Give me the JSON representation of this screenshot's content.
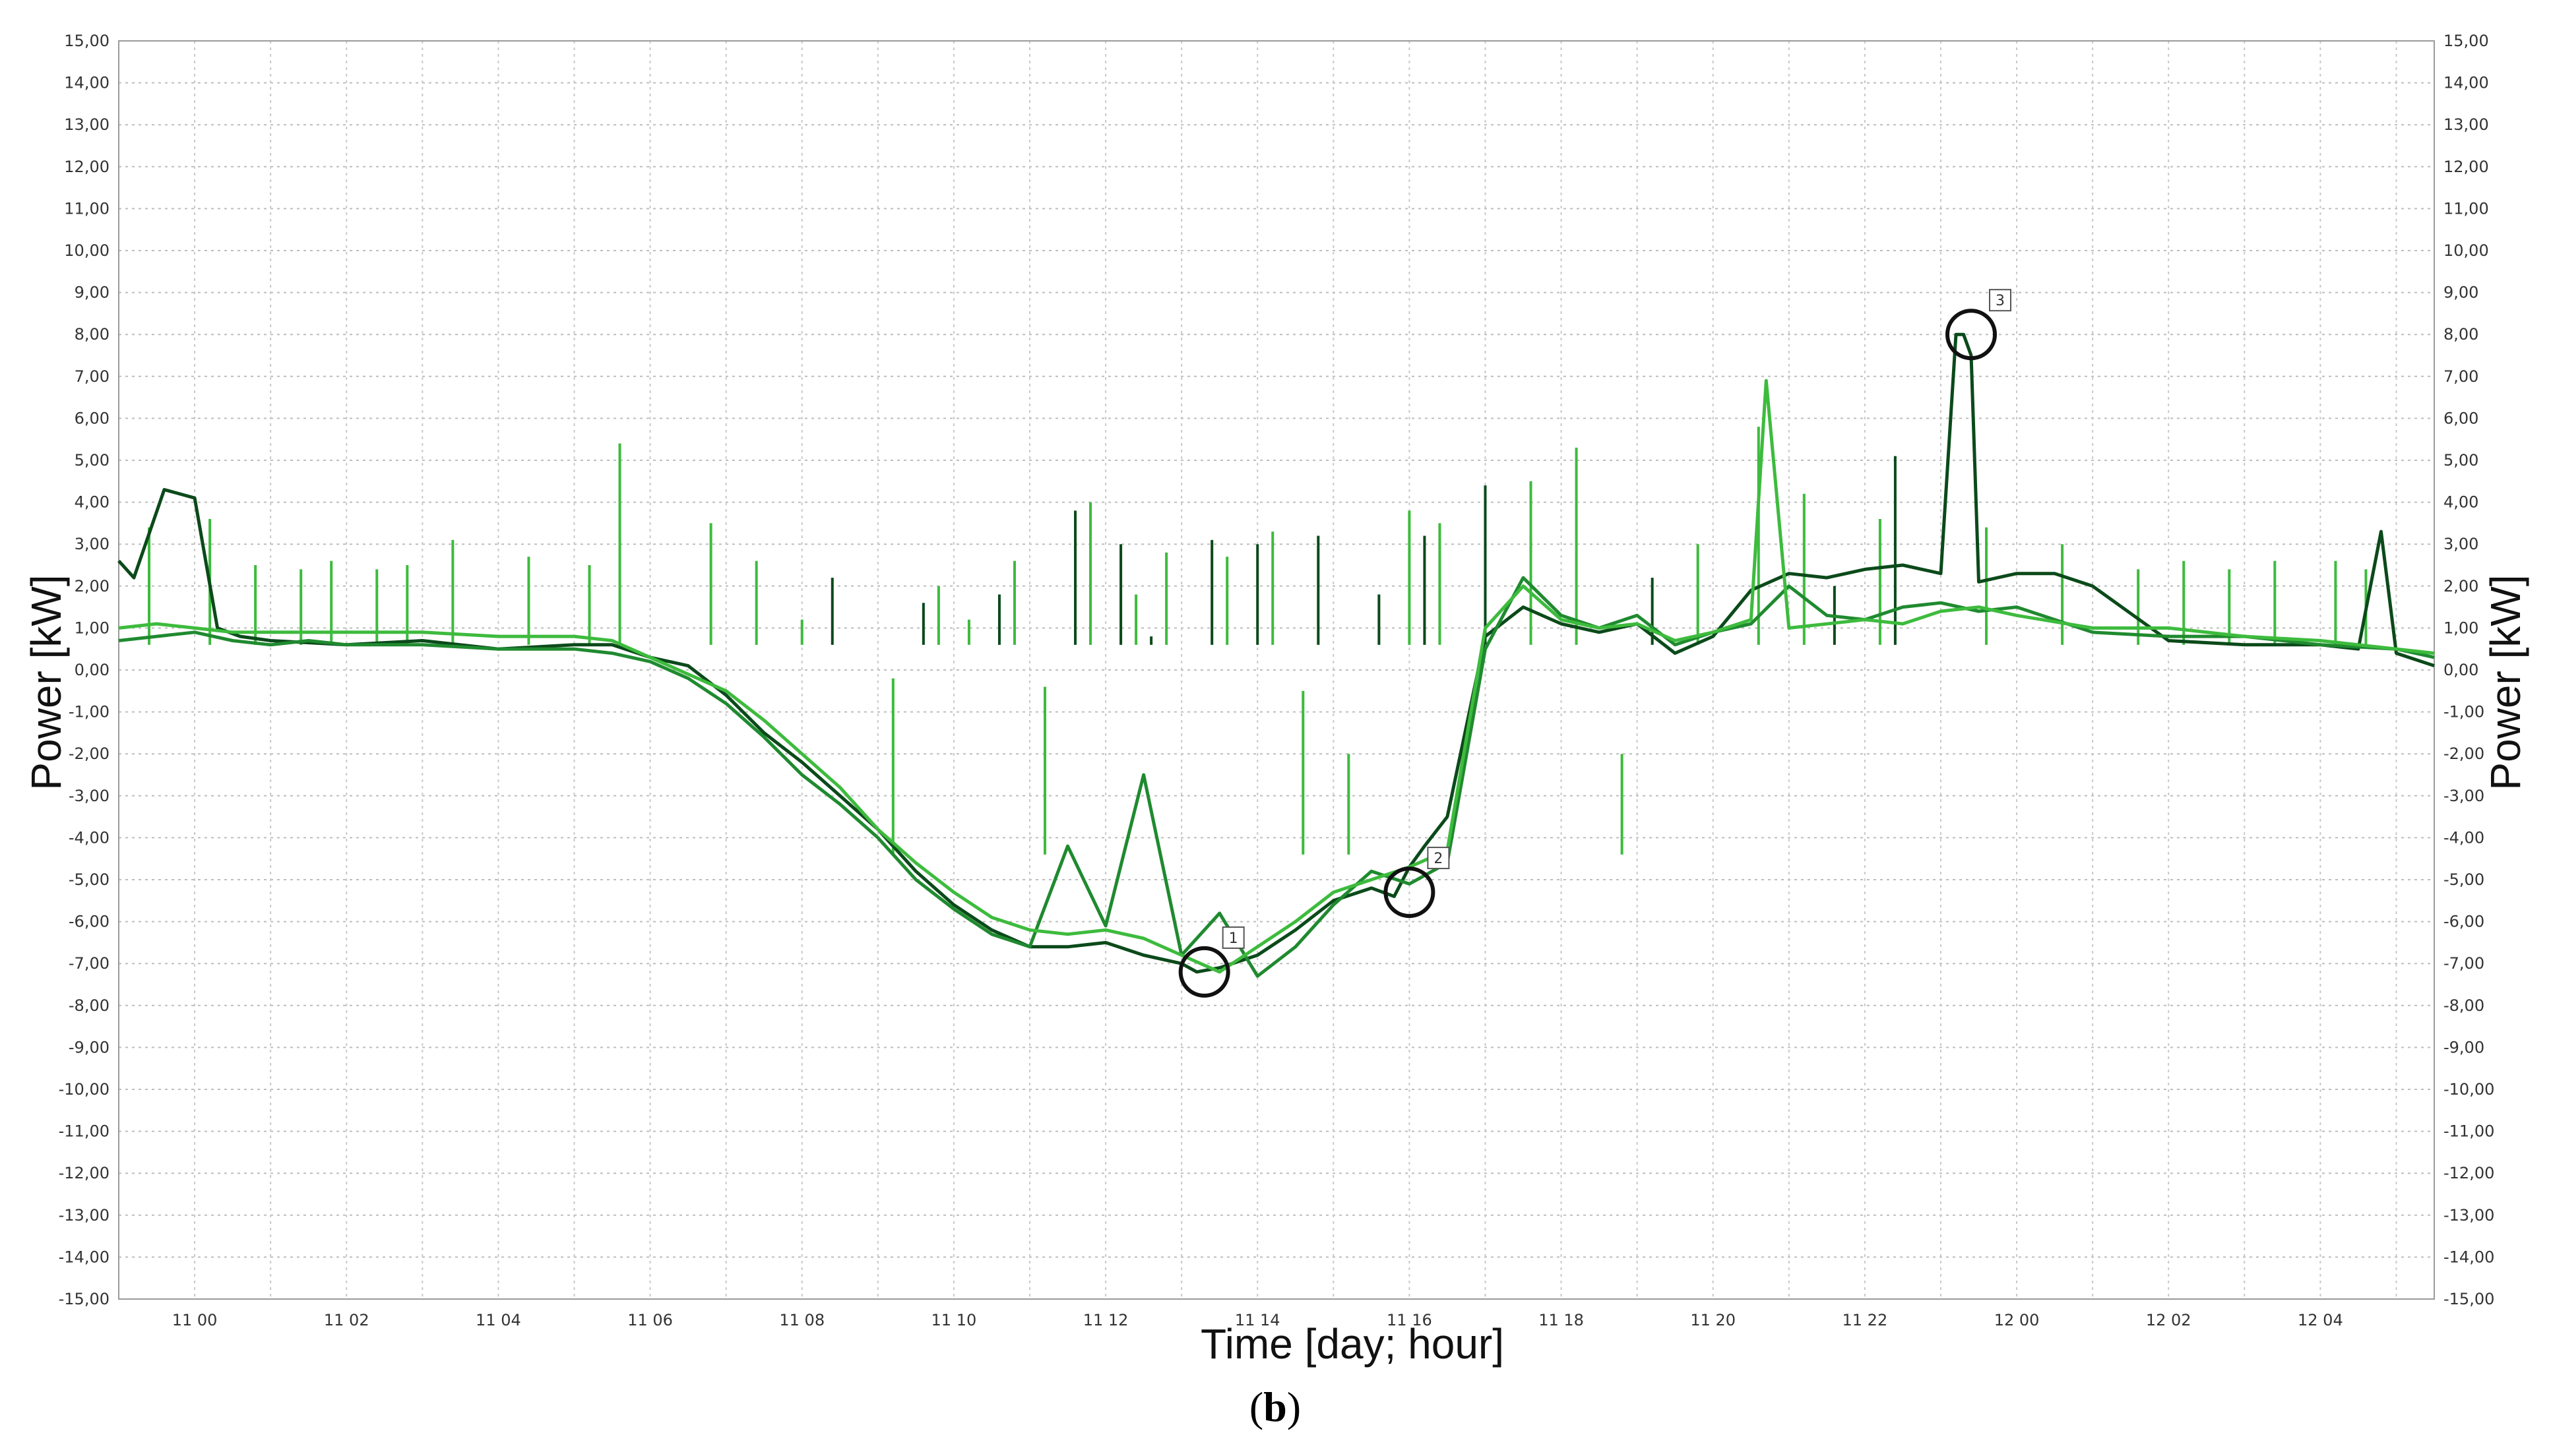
{
  "chart_data": {
    "type": "line",
    "title": "",
    "panel_label_letter": "b",
    "xlabel": "Time [day; hour]",
    "ylabel_left": "Power [kW]",
    "ylabel_right": "Power [kW]",
    "x_unit": "hours from 11 00",
    "xlim": [
      -1,
      29.5
    ],
    "ylim": [
      -15,
      15
    ],
    "y_ticks": [
      15,
      14,
      13,
      12,
      11,
      10,
      9,
      8,
      7,
      6,
      5,
      4,
      3,
      2,
      1,
      0,
      -1,
      -2,
      -3,
      -4,
      -5,
      -6,
      -7,
      -8,
      -9,
      -10,
      -11,
      -12,
      -13,
      -14,
      -15
    ],
    "y_tick_labels": [
      "15,00",
      "14,00",
      "13,00",
      "12,00",
      "11,00",
      "10,00",
      "9,00",
      "8,00",
      "7,00",
      "6,00",
      "5,00",
      "4,00",
      "3,00",
      "2,00",
      "1,00",
      "0,00",
      "-1,00",
      "-2,00",
      "-3,00",
      "-4,00",
      "-5,00",
      "-6,00",
      "-7,00",
      "-8,00",
      "-9,00",
      "-10,00",
      "-11,00",
      "-12,00",
      "-13,00",
      "-14,00",
      "-15,00"
    ],
    "x_ticks": [
      0,
      2,
      4,
      6,
      8,
      10,
      12,
      14,
      16,
      18,
      20,
      22,
      24,
      26,
      28
    ],
    "x_tick_labels": [
      "11 00",
      "11 02",
      "11 04",
      "11 06",
      "11 08",
      "11 10",
      "11 12",
      "11 14",
      "11 16",
      "11 18",
      "11 20",
      "11 22",
      "12 00",
      "12 02",
      "12 04"
    ],
    "grid": true,
    "series": [
      {
        "color": "#0b4a1a",
        "x": [
          -1,
          -0.8,
          -0.4,
          -0.2,
          0,
          0.3,
          0.6,
          1,
          2,
          3,
          4,
          5,
          5.5,
          6,
          6.5,
          7,
          7.5,
          8,
          8.5,
          9,
          9.5,
          10,
          10.5,
          11,
          11.5,
          12,
          12.5,
          13,
          13.2,
          13.5,
          14,
          14.5,
          15,
          15.5,
          15.8,
          16,
          16.2,
          16.5,
          17,
          17.5,
          18,
          18.5,
          19,
          19.5,
          20,
          20.5,
          21,
          21.5,
          22,
          22.5,
          23,
          23.2,
          23.3,
          23.4,
          23.5,
          24,
          24.5,
          25,
          26,
          27,
          28,
          28.5,
          28.8,
          29,
          29.5
        ],
        "y": [
          2.6,
          2.2,
          4.3,
          4.2,
          4.1,
          1,
          0.8,
          0.7,
          0.6,
          0.7,
          0.5,
          0.6,
          0.6,
          0.3,
          0.1,
          -0.6,
          -1.5,
          -2.2,
          -3,
          -3.8,
          -4.8,
          -5.6,
          -6.2,
          -6.6,
          -6.6,
          -6.5,
          -6.8,
          -7,
          -7.2,
          -7.1,
          -6.8,
          -6.2,
          -5.5,
          -5.2,
          -5.4,
          -4.7,
          -4.2,
          -3.5,
          0.8,
          1.5,
          1.1,
          0.9,
          1.1,
          0.4,
          0.8,
          1.9,
          2.3,
          2.2,
          2.4,
          2.5,
          2.3,
          8,
          8,
          7.5,
          2.1,
          2.3,
          2.3,
          2.0,
          0.7,
          0.6,
          0.6,
          0.5,
          3.3,
          0.4,
          0.1
        ]
      },
      {
        "color": "#1f8a2f",
        "x": [
          -1,
          -0.5,
          0,
          0.5,
          1,
          1.5,
          2,
          3,
          4,
          5,
          5.5,
          6,
          6.5,
          7,
          7.5,
          8,
          8.5,
          9,
          9.5,
          10,
          10.5,
          11,
          11.5,
          12,
          12.5,
          13,
          13.5,
          14,
          14.5,
          15,
          15.5,
          16,
          16.5,
          17,
          17.5,
          18,
          18.5,
          19,
          19.5,
          20,
          20.5,
          21,
          21.5,
          22,
          22.5,
          23,
          23.5,
          24,
          25,
          26,
          27,
          28,
          29,
          29.5
        ],
        "y": [
          0.7,
          0.8,
          0.9,
          0.7,
          0.6,
          0.7,
          0.6,
          0.6,
          0.5,
          0.5,
          0.4,
          0.2,
          -0.2,
          -0.8,
          -1.6,
          -2.5,
          -3.2,
          -4,
          -5,
          -5.7,
          -6.3,
          -6.6,
          -4.2,
          -6.1,
          -2.5,
          -6.8,
          -5.8,
          -7.3,
          -6.6,
          -5.6,
          -4.8,
          -5.1,
          -4.6,
          0.5,
          2.2,
          1.3,
          1.0,
          1.3,
          0.6,
          0.9,
          1.1,
          2.0,
          1.3,
          1.2,
          1.5,
          1.6,
          1.4,
          1.5,
          0.9,
          0.8,
          0.8,
          0.6,
          0.5,
          0.3
        ]
      },
      {
        "color": "#3dbb3d",
        "x": [
          -1,
          -0.5,
          0,
          0.5,
          1,
          2,
          3,
          4,
          5,
          5.5,
          6,
          6.5,
          7,
          7.5,
          8,
          8.5,
          9,
          9.5,
          10,
          10.5,
          11,
          11.5,
          12,
          12.5,
          13,
          13.5,
          14,
          14.5,
          15,
          15.5,
          16,
          16.5,
          17,
          17.5,
          18,
          18.5,
          19,
          19.5,
          20,
          20.5,
          20.7,
          21,
          22,
          22.5,
          23,
          23.5,
          24,
          25,
          26,
          27,
          28,
          29,
          29.5
        ],
        "y": [
          1.0,
          1.1,
          1.0,
          0.9,
          0.9,
          0.9,
          0.9,
          0.8,
          0.8,
          0.7,
          0.3,
          -0.1,
          -0.5,
          -1.2,
          -2,
          -2.8,
          -3.8,
          -4.6,
          -5.3,
          -5.9,
          -6.2,
          -6.3,
          -6.2,
          -6.4,
          -6.8,
          -7.2,
          -6.6,
          -6.0,
          -5.3,
          -5.0,
          -4.7,
          -4.3,
          1.0,
          2.0,
          1.2,
          1.0,
          1.1,
          0.7,
          0.9,
          1.2,
          6.9,
          1.0,
          1.2,
          1.1,
          1.4,
          1.5,
          1.3,
          1.0,
          1.0,
          0.8,
          0.7,
          0.5,
          0.4
        ]
      }
    ],
    "spikes": [
      {
        "color": "#3dbb3d",
        "x": [
          -0.6,
          0.2,
          0.8,
          1.4,
          1.8,
          2.4,
          2.8,
          3.4,
          4.4,
          5.2,
          5.6,
          6.8,
          7.4,
          8.0,
          8.8,
          9.2,
          9.8,
          10.2,
          10.8,
          11.2,
          11.8,
          12.4,
          12.8,
          13.6,
          14.2,
          14.6,
          15.2,
          16.0,
          16.4,
          17.6,
          18.2,
          18.8,
          19.8,
          20.6,
          21.2,
          22.2,
          23.6,
          24.6,
          25.6,
          26.2,
          26.8,
          27.4,
          28.2,
          28.6
        ],
        "y": [
          3.4,
          3.6,
          2.5,
          2.4,
          2.6,
          2.4,
          2.5,
          3.1,
          2.7,
          2.5,
          5.4,
          3.5,
          2.6,
          1.2,
          0.6,
          -0.2,
          2.0,
          1.2,
          2.6,
          -0.4,
          4.0,
          1.8,
          2.8,
          2.7,
          3.3,
          -0.5,
          -2.0,
          3.8,
          3.5,
          4.5,
          5.3,
          -2.0,
          3.0,
          5.8,
          4.2,
          3.6,
          3.4,
          3.0,
          2.4,
          2.6,
          2.4,
          2.6,
          2.6,
          2.4
        ]
      },
      {
        "color": "#0b4a1a",
        "x": [
          8.4,
          9.6,
          10.6,
          11.6,
          12.2,
          12.6,
          13.4,
          14.0,
          14.8,
          15.6,
          16.2,
          17.0,
          19.2,
          21.6,
          22.4
        ],
        "y": [
          2.2,
          1.6,
          1.8,
          3.8,
          3.0,
          0.8,
          3.1,
          3.0,
          3.2,
          1.8,
          3.2,
          4.4,
          2.2,
          2.0,
          5.1
        ]
      }
    ],
    "markers": [
      {
        "label": "1",
        "x": 13.3,
        "y": -7.2
      },
      {
        "label": "2",
        "x": 16.0,
        "y": -5.3
      },
      {
        "label": "3",
        "x": 23.4,
        "y": 8.0
      }
    ]
  }
}
